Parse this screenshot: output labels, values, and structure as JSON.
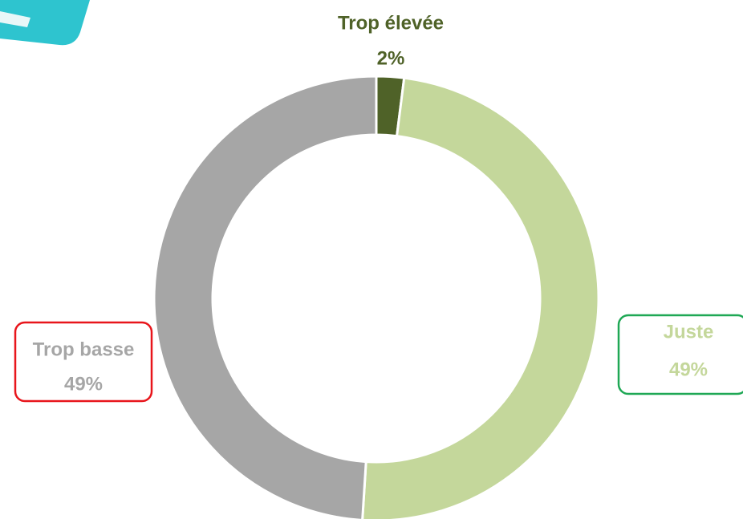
{
  "chart_data": {
    "type": "donut",
    "categories": [
      "Trop élevée",
      "Juste",
      "Trop basse"
    ],
    "values": [
      2,
      49,
      49
    ],
    "value_labels": [
      "2%",
      "49%",
      "49%"
    ],
    "colors": [
      "#4f6228",
      "#c4d79b",
      "#a6a6a6"
    ]
  }
}
